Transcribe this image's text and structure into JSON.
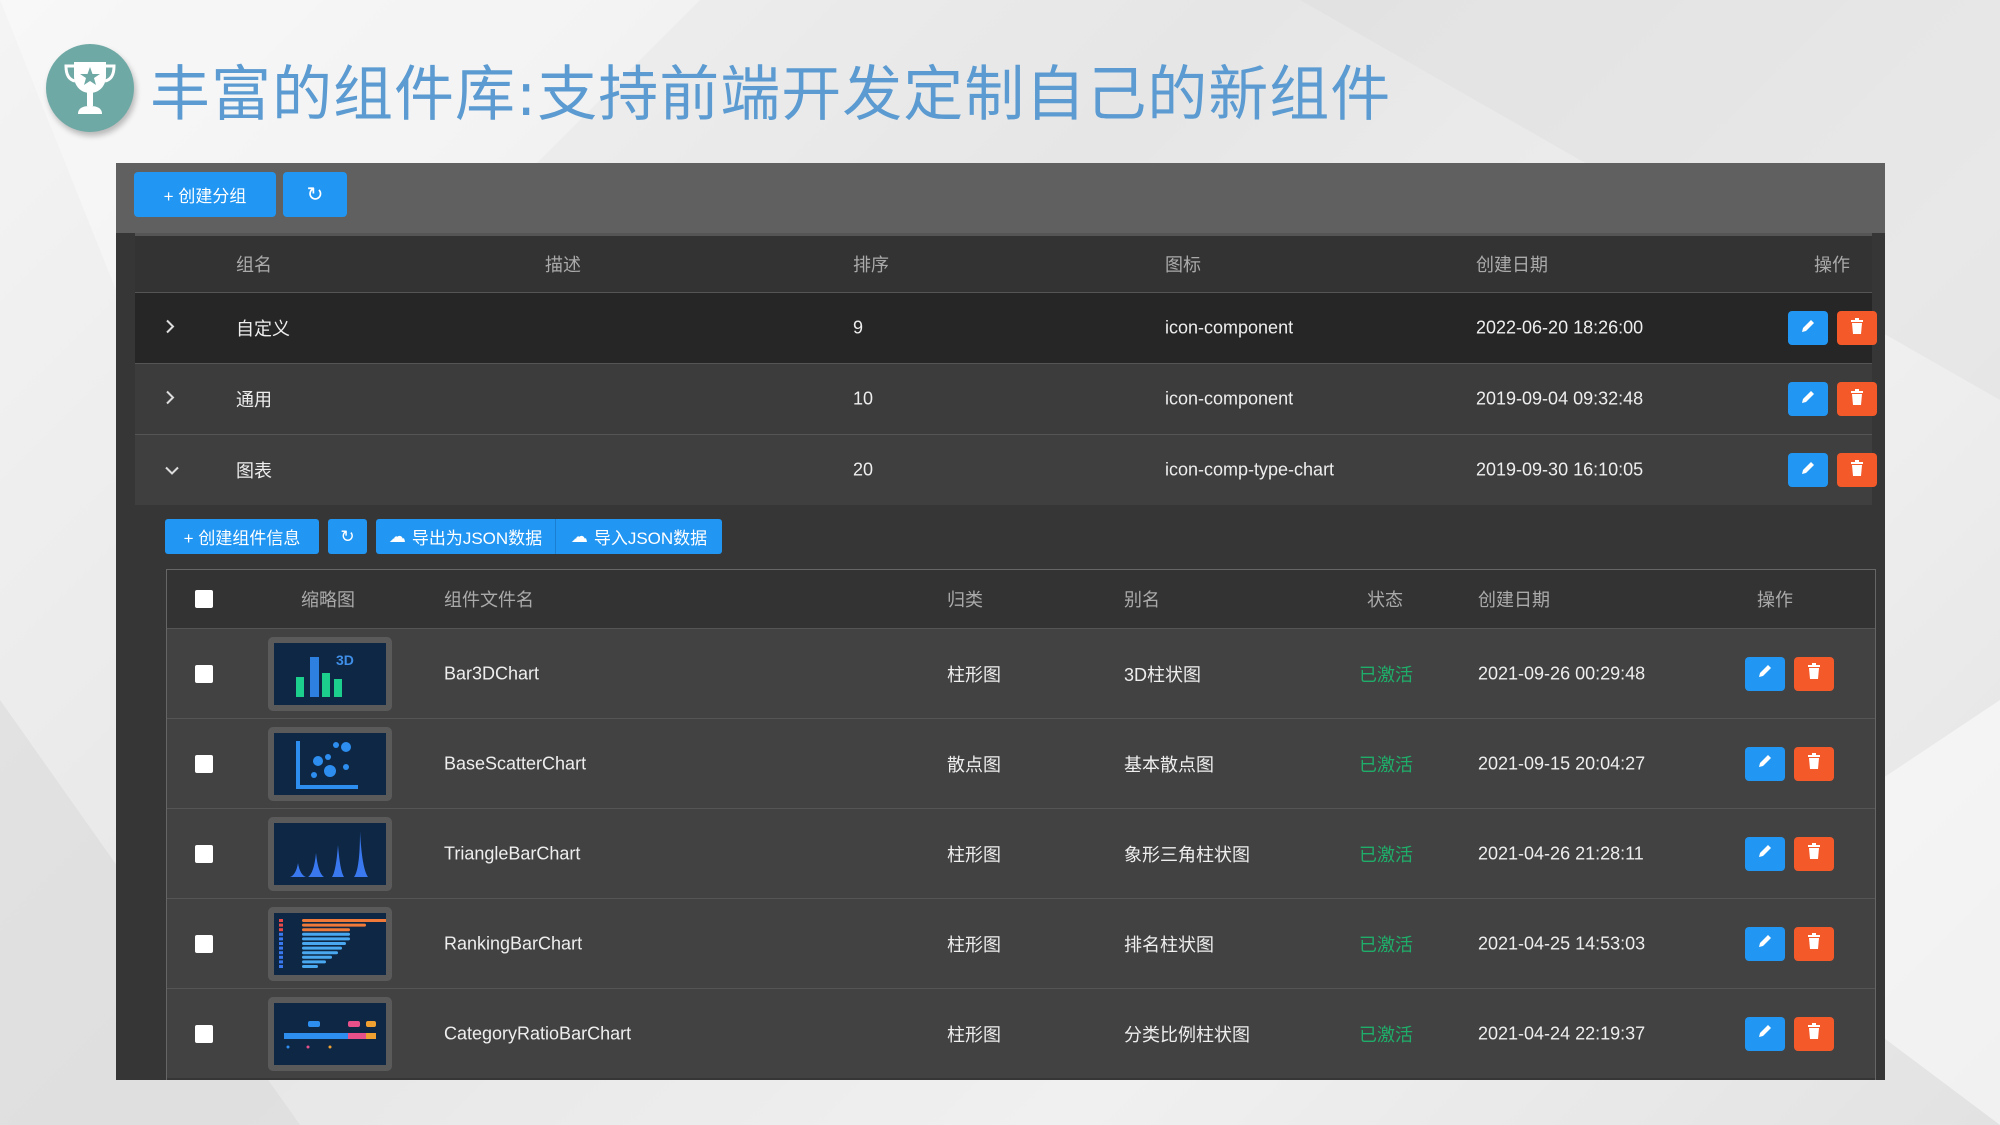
{
  "title": "丰富的组件库:支持前端开发定制自己的新组件",
  "colors": {
    "primary": "#2196f3",
    "danger": "#f4592a",
    "active": "#1fae6a",
    "title": "#5b9bd1"
  },
  "toolbar": {
    "create_group": "+ 创建分组",
    "refresh_icon": "refresh-icon"
  },
  "group_table": {
    "columns": [
      "组名",
      "描述",
      "排序",
      "图标",
      "创建日期",
      "操作"
    ],
    "rows": [
      {
        "expanded": false,
        "name": "自定义",
        "desc": "",
        "order": "9",
        "icon": "icon-component",
        "created": "2022-06-20 18:26:00"
      },
      {
        "expanded": false,
        "name": "通用",
        "desc": "",
        "order": "10",
        "icon": "icon-component",
        "created": "2019-09-04 09:32:48"
      },
      {
        "expanded": true,
        "name": "图表",
        "desc": "",
        "order": "20",
        "icon": "icon-comp-type-chart",
        "created": "2019-09-30 16:10:05"
      }
    ]
  },
  "sub_toolbar": {
    "create": "+ 创建组件信息",
    "export": "导出为JSON数据",
    "import": "导入JSON数据"
  },
  "component_table": {
    "columns": [
      "缩略图",
      "组件文件名",
      "归类",
      "别名",
      "状态",
      "创建日期",
      "操作"
    ],
    "rows": [
      {
        "thumb": "bar3d",
        "file": "Bar3DChart",
        "category": "柱形图",
        "alias": "3D柱状图",
        "status": "已激活",
        "created": "2021-09-26 00:29:48"
      },
      {
        "thumb": "scatter",
        "file": "BaseScatterChart",
        "category": "散点图",
        "alias": "基本散点图",
        "status": "已激活",
        "created": "2021-09-15 20:04:27"
      },
      {
        "thumb": "triangle",
        "file": "TriangleBarChart",
        "category": "柱形图",
        "alias": "象形三角柱状图",
        "status": "已激活",
        "created": "2021-04-26 21:28:11"
      },
      {
        "thumb": "ranking",
        "file": "RankingBarChart",
        "category": "柱形图",
        "alias": "排名柱状图",
        "status": "已激活",
        "created": "2021-04-25 14:53:03"
      },
      {
        "thumb": "ratio",
        "file": "CategoryRatioBarChart",
        "category": "柱形图",
        "alias": "分类比例柱状图",
        "status": "已激活",
        "created": "2021-04-24 22:19:37"
      }
    ]
  }
}
